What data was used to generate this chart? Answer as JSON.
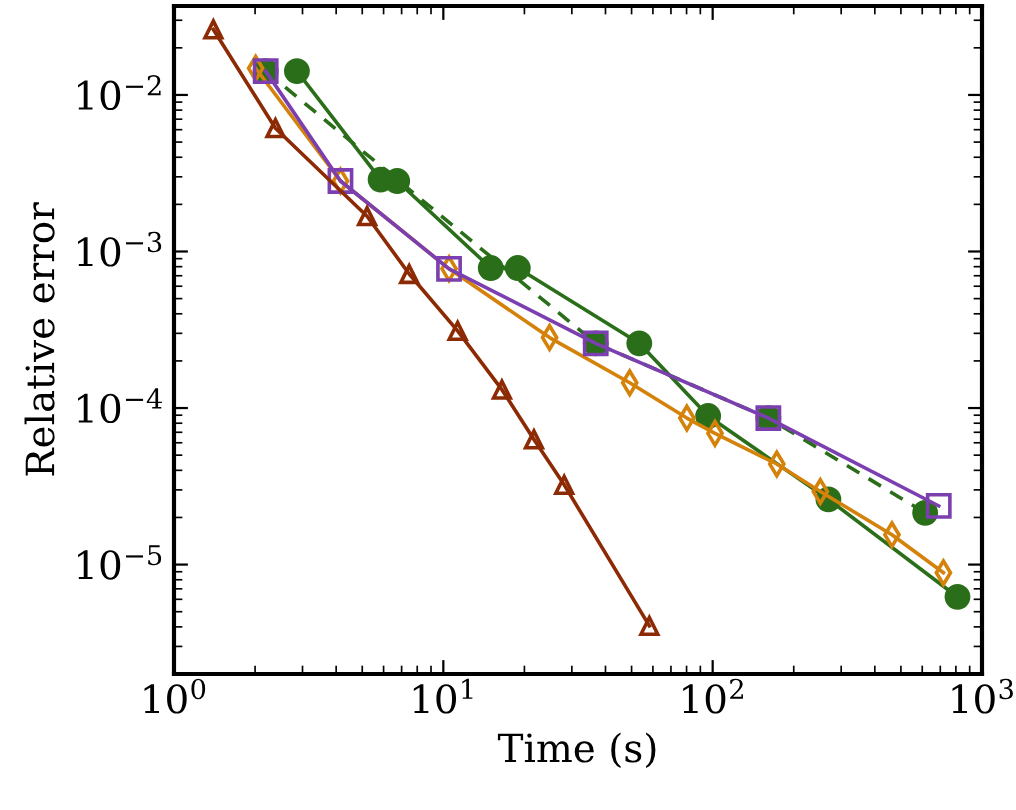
{
  "chart_data": {
    "type": "line",
    "xlabel": "Time (s)",
    "ylabel": "Relative error",
    "log": "xy",
    "grid": false,
    "legend": false,
    "xlim": [
      1,
      1000
    ],
    "ylim": [
      2e-06,
      0.037
    ],
    "xticks": [
      {
        "value": 1,
        "label": "10$^{0}$"
      },
      {
        "value": 10,
        "label": "10$^{1}$"
      },
      {
        "value": 100,
        "label": "10$^{2}$"
      },
      {
        "value": 1000,
        "label": "10$^{3}$"
      }
    ],
    "yticks": [
      {
        "value": 1e-05,
        "label": "10$^{−5}$"
      },
      {
        "value": 0.0001,
        "label": "10$^{−4}$"
      },
      {
        "value": 0.001,
        "label": "10$^{−3}$"
      },
      {
        "value": 0.01,
        "label": "10$^{−2}$"
      }
    ],
    "series": [
      {
        "color": "#2a6e1a",
        "marker": "circle",
        "line_style": "dashed",
        "x": [
          2.19,
          36.8,
          161,
          615
        ],
        "values": [
          0.0142,
          0.000259,
          8.63e-05,
          2.14e-05
        ]
      },
      {
        "color": "#2a6e1a",
        "marker": "circle",
        "line_style": "solid",
        "x": [
          2.86,
          5.85,
          6.74,
          15.0,
          18.9,
          53.4,
          96.2,
          269,
          811
        ],
        "values": [
          0.0142,
          0.00288,
          0.00282,
          0.000784,
          0.000784,
          0.000259,
          8.89e-05,
          2.61e-05,
          6.22e-06
        ]
      },
      {
        "color": "#d4820a",
        "marker": "diamond",
        "line_style": "solid",
        "x": [
          2.01,
          4.15,
          10.5,
          24.8,
          49.2,
          80.2,
          102,
          173,
          251,
          463,
          719
        ],
        "values": [
          0.0148,
          0.00282,
          0.000775,
          0.000282,
          0.000145,
          8.63e-05,
          6.89e-05,
          4.39e-05,
          2.93e-05,
          1.55e-05,
          8.87e-06
        ]
      },
      {
        "color": "#7b3fb0",
        "marker": "square",
        "line_style": "solid",
        "x": [
          2.19,
          4.15,
          10.5,
          36.8,
          161,
          691
        ],
        "values": [
          0.0142,
          0.00282,
          0.000775,
          0.000259,
          8.63e-05,
          2.37e-05
        ]
      },
      {
        "color": "#8c2a04",
        "marker": "triangle",
        "line_style": "solid",
        "x": [
          1.4,
          2.38,
          5.21,
          7.47,
          11.3,
          16.5,
          21.7,
          28.1,
          58.2
        ],
        "values": [
          0.0262,
          0.00613,
          0.00168,
          0.000718,
          0.000311,
          0.000131,
          6.3e-05,
          3.23e-05,
          4.06e-06
        ]
      }
    ]
  }
}
